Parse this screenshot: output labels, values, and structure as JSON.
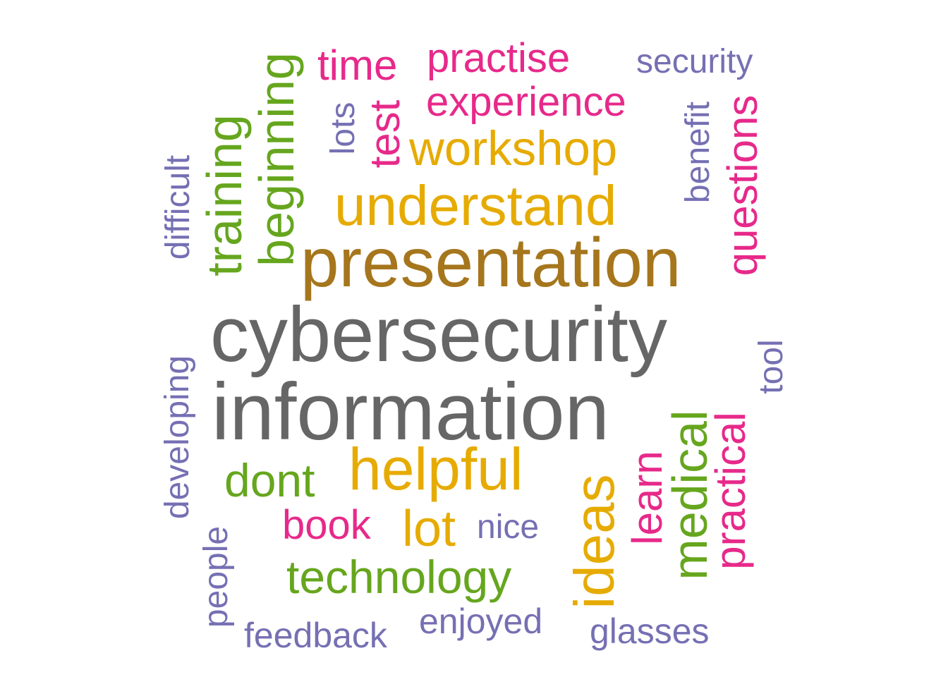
{
  "colors": {
    "gray": "#666666",
    "olive": "#A6761D",
    "gold": "#E6AB02",
    "green": "#66A61E",
    "pink": "#E7298A",
    "purple": "#7570B3"
  },
  "words": {
    "cybersecurity": "cybersecurity",
    "information": "information",
    "presentation": "presentation",
    "understand": "understand",
    "workshop": "workshop",
    "helpful": "helpful",
    "technology": "technology",
    "lot": "lot",
    "dont": "dont",
    "ideas": "ideas",
    "medical": "medical",
    "training": "training",
    "beginning": "beginning",
    "time": "time",
    "practise": "practise",
    "experience": "experience",
    "test": "test",
    "questions": "questions",
    "practical": "practical",
    "learn": "learn",
    "book": "book",
    "security": "security",
    "lots": "lots",
    "benefit": "benefit",
    "difficult": "difficult",
    "tool": "tool",
    "developing": "developing",
    "people": "people",
    "nice": "nice",
    "feedback": "feedback",
    "enjoyed": "enjoyed",
    "glasses": "glasses"
  }
}
